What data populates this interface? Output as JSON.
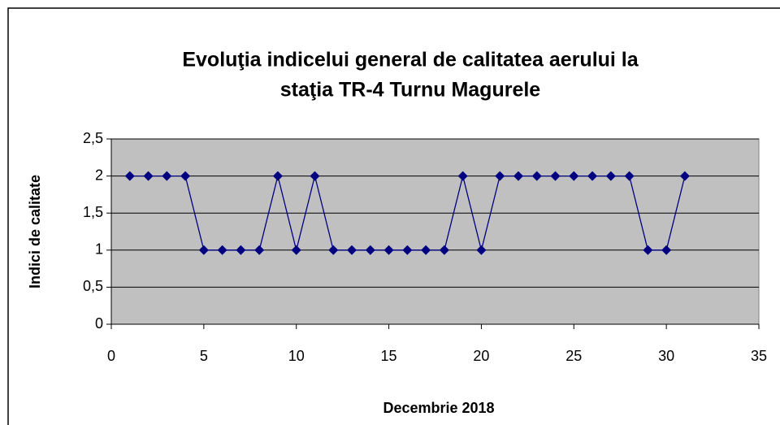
{
  "chart_data": {
    "type": "line",
    "title": [
      "Evoluţia indicelui general de calitatea aerului la",
      "staţia TR-4 Turnu Magurele"
    ],
    "x_label": "Decembrie 2018",
    "y_label": "Indici de calitate",
    "x": [
      1,
      2,
      3,
      4,
      5,
      6,
      7,
      8,
      9,
      10,
      11,
      12,
      13,
      14,
      15,
      16,
      17,
      18,
      19,
      20,
      21,
      22,
      23,
      24,
      25,
      26,
      27,
      28,
      29,
      30,
      31
    ],
    "series": [
      {
        "color": "#000080",
        "values": [
          2,
          2,
          2,
          2,
          1,
          1,
          1,
          1,
          2,
          1,
          2,
          1,
          1,
          1,
          1,
          1,
          1,
          1,
          2,
          1,
          2,
          2,
          2,
          2,
          2,
          2,
          2,
          2,
          1,
          1,
          2
        ]
      }
    ],
    "xlim": [
      0,
      35
    ],
    "xticks": [
      0,
      5,
      10,
      15,
      20,
      25,
      30,
      35
    ],
    "ylim": [
      0,
      2.5
    ],
    "yticks": [
      0,
      {
        "value": 0.5,
        "label": "0,5"
      },
      1,
      {
        "value": 1.5,
        "label": "1,5"
      },
      2,
      {
        "value": 2.5,
        "label": "2,5"
      }
    ],
    "grid": true,
    "plot_background": "#c0c0c0"
  }
}
